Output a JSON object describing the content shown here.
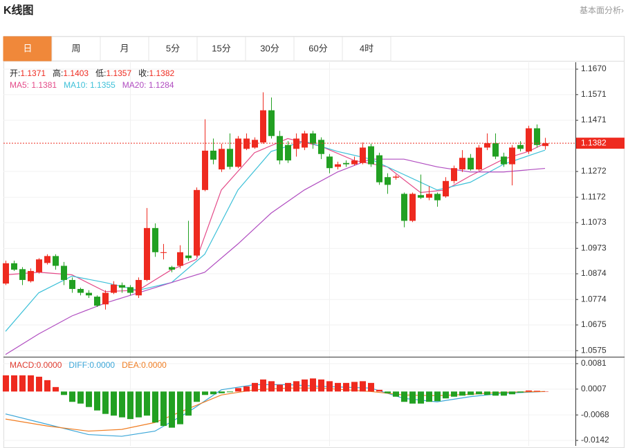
{
  "header": {
    "title": "K线图",
    "link": "基本面分析›"
  },
  "tabs": [
    "日",
    "周",
    "月",
    "5分",
    "15分",
    "30分",
    "60分",
    "4时"
  ],
  "active_tab": 0,
  "chart_data": [
    {
      "type": "candlestick",
      "open": [
        1.0836,
        1.0915,
        1.0892,
        1.0845,
        1.088,
        1.0916,
        1.0943,
        1.0905,
        1.085,
        1.0815,
        1.08,
        1.0785,
        1.0755,
        1.08,
        1.083,
        1.0822,
        1.079,
        1.085,
        1.1052,
        1.0955,
        1.09,
        1.0905,
        1.0945,
        1.0945,
        1.12,
        1.1353,
        1.128,
        1.136,
        1.129,
        1.136,
        1.1365,
        1.1385,
        1.151,
        1.141,
        1.1375,
        1.136,
        1.1365,
        1.142,
        1.1395,
        1.133,
        1.129,
        1.1305,
        1.13,
        1.1305,
        1.137,
        1.1335,
        1.125,
        1.1248,
        1.1185,
        1.108,
        1.118,
        1.117,
        1.1185,
        1.1175,
        1.1235,
        1.128,
        1.1325,
        1.128,
        1.1365,
        1.1382,
        1.133,
        1.13,
        1.1375,
        1.135,
        1.144,
        1.1371
      ],
      "high": [
        1.0925,
        1.0925,
        1.09,
        1.0895,
        1.0935,
        1.095,
        1.095,
        1.092,
        1.086,
        1.082,
        1.081,
        1.079,
        1.081,
        1.0845,
        1.084,
        1.083,
        1.086,
        1.113,
        1.107,
        1.099,
        1.0905,
        1.0985,
        1.108,
        1.121,
        1.1475,
        1.14,
        1.138,
        1.142,
        1.141,
        1.142,
        1.1405,
        1.158,
        1.156,
        1.143,
        1.139,
        1.142,
        1.143,
        1.143,
        1.1405,
        1.134,
        1.131,
        1.1315,
        1.133,
        1.1385,
        1.138,
        1.1345,
        1.1265,
        1.126,
        1.119,
        1.119,
        1.126,
        1.1215,
        1.119,
        1.125,
        1.1295,
        1.1355,
        1.134,
        1.1375,
        1.142,
        1.142,
        1.1345,
        1.1375,
        1.139,
        1.145,
        1.1455,
        1.1403
      ],
      "low": [
        1.083,
        1.0885,
        1.083,
        1.084,
        1.0875,
        1.091,
        1.089,
        1.083,
        1.08,
        1.079,
        1.078,
        1.0745,
        1.0735,
        1.0795,
        1.08,
        1.079,
        1.078,
        1.0845,
        1.094,
        1.093,
        1.088,
        1.0895,
        1.0925,
        1.094,
        1.1195,
        1.13,
        1.127,
        1.128,
        1.1285,
        1.1355,
        1.136,
        1.138,
        1.14,
        1.13,
        1.1305,
        1.133,
        1.1355,
        1.136,
        1.132,
        1.1265,
        1.128,
        1.129,
        1.1295,
        1.13,
        1.129,
        1.122,
        1.1185,
        1.124,
        1.1055,
        1.1075,
        1.1165,
        1.116,
        1.1135,
        1.117,
        1.1225,
        1.127,
        1.1275,
        1.1275,
        1.1355,
        1.132,
        1.129,
        1.1218,
        1.135,
        1.134,
        1.1365,
        1.1357
      ],
      "close": [
        1.0915,
        1.089,
        1.085,
        1.0885,
        1.093,
        1.0943,
        1.0905,
        1.085,
        1.0815,
        1.08,
        1.079,
        1.075,
        1.08,
        1.0832,
        1.082,
        1.08,
        1.085,
        1.1052,
        1.0958,
        1.0958,
        1.089,
        1.0958,
        1.0935,
        1.12,
        1.1353,
        1.1318,
        1.136,
        1.129,
        1.14,
        1.14,
        1.1395,
        1.151,
        1.141,
        1.1315,
        1.1315,
        1.14,
        1.142,
        1.138,
        1.134,
        1.1285,
        1.13,
        1.13,
        1.1315,
        1.1365,
        1.13,
        1.123,
        1.122,
        1.1252,
        1.108,
        1.1185,
        1.117,
        1.1185,
        1.116,
        1.1235,
        1.1285,
        1.1325,
        1.128,
        1.1365,
        1.1382,
        1.133,
        1.13,
        1.1365,
        1.136,
        1.144,
        1.1375,
        1.1382
      ],
      "up_color": "#ee2a1f",
      "down_color": "#22a022",
      "ylim": [
        1.0554,
        1.1697
      ],
      "yticks": [
        {
          "value": 1.167,
          "label": "1.1670"
        },
        1.1571,
        1.1471,
        1.1272,
        1.1172,
        1.1073,
        1.0973,
        1.0874,
        1.0774,
        1.0675,
        1.0575
      ],
      "ohlc_legend": [
        {
          "label": "开:",
          "value": 1.1371
        },
        {
          "label": "高:",
          "value": 1.1403
        },
        {
          "label": "低:",
          "value": 1.1357
        },
        {
          "label": "收:",
          "value": 1.1382
        }
      ],
      "series": [
        {
          "name": "MA5:",
          "current": 1.1381,
          "color": "#e44a88",
          "x": [
            0,
            4,
            8,
            12,
            16,
            20,
            23,
            26,
            30,
            34,
            38,
            42,
            46,
            50,
            53,
            56,
            60,
            63,
            65
          ],
          "values": [
            1.087,
            1.088,
            1.087,
            1.0805,
            1.081,
            1.089,
            1.093,
            1.12,
            1.1345,
            1.14,
            1.137,
            1.1315,
            1.129,
            1.119,
            1.12,
            1.1255,
            1.132,
            1.135,
            1.1381
          ]
        },
        {
          "name": "MA10:",
          "current": 1.1355,
          "color": "#3cc0d8",
          "x": [
            0,
            4,
            8,
            12,
            16,
            20,
            24,
            28,
            32,
            36,
            40,
            44,
            48,
            52,
            56,
            60,
            65
          ],
          "values": [
            1.065,
            1.08,
            1.0865,
            1.084,
            1.081,
            1.084,
            1.095,
            1.12,
            1.135,
            1.139,
            1.135,
            1.132,
            1.126,
            1.12,
            1.123,
            1.13,
            1.1355
          ]
        },
        {
          "name": "MA20:",
          "current": 1.1284,
          "color": "#b04cc0",
          "x": [
            0,
            4,
            8,
            12,
            16,
            20,
            24,
            28,
            32,
            36,
            40,
            44,
            48,
            52,
            56,
            60,
            65
          ],
          "values": [
            1.056,
            1.064,
            1.071,
            1.076,
            1.08,
            1.084,
            1.088,
            1.099,
            1.111,
            1.12,
            1.127,
            1.132,
            1.132,
            1.129,
            1.127,
            1.127,
            1.1284
          ]
        }
      ]
    },
    {
      "type": "macd",
      "legend": {
        "name": "MACD:",
        "current": 0,
        "current_label": "0.0000",
        "color": "#e03a2e"
      },
      "values": [
        0.0047,
        0.0047,
        0.0047,
        0.0047,
        0.0043,
        0.0033,
        0.0013,
        -0.001,
        -0.003,
        -0.0035,
        -0.0045,
        -0.0055,
        -0.0065,
        -0.007,
        -0.0075,
        -0.008,
        -0.0075,
        -0.007,
        -0.009,
        -0.01,
        -0.0105,
        -0.0095,
        -0.007,
        -0.003,
        -0.001,
        -0.0008,
        -0.0005,
        -0.0002,
        0.001,
        0.0015,
        0.0025,
        0.0035,
        0.003,
        0.002,
        0.0025,
        0.003,
        0.0035,
        0.0038,
        0.0035,
        0.003,
        0.0025,
        0.0025,
        0.0028,
        0.003,
        0.0025,
        0.0005,
        -0.0005,
        -0.0015,
        -0.003,
        -0.0035,
        -0.0035,
        -0.003,
        -0.0028,
        -0.002,
        -0.0015,
        -0.0012,
        -0.001,
        -0.0008,
        -0.001,
        -0.0012,
        -0.0012,
        -0.0008,
        -0.0003,
        0.0003,
        0.0002,
        0
      ],
      "up_color": "#ee2a1f",
      "down_color": "#22a022",
      "ylim": [
        -0.0158,
        0.0097
      ],
      "yticks": [
        0.0081,
        0.0007,
        -0.0068,
        -0.0142
      ],
      "series": [
        {
          "name": "DIFF:",
          "current": 0,
          "current_label": "0.0000",
          "color": "#3aa6d8",
          "x": [
            0,
            5,
            10,
            14,
            18,
            22,
            26,
            30,
            34,
            38,
            44,
            48,
            52,
            56,
            60,
            65
          ],
          "values": [
            -0.0065,
            -0.0095,
            -0.0125,
            -0.013,
            -0.0115,
            -0.006,
            0.0005,
            0.002,
            0.002,
            0.0015,
            0.001,
            -0.002,
            -0.003,
            -0.0015,
            -0.0005,
            0
          ]
        },
        {
          "name": "DEA:",
          "current": 0,
          "current_label": "0.0000",
          "color": "#f07d22",
          "x": [
            0,
            5,
            10,
            14,
            18,
            22,
            26,
            30,
            34,
            38,
            44,
            48,
            52,
            56,
            60,
            65
          ],
          "values": [
            -0.008,
            -0.01,
            -0.0115,
            -0.011,
            -0.009,
            -0.005,
            -0.001,
            0.0005,
            0.001,
            0.001,
            0,
            -0.001,
            -0.0012,
            -0.0008,
            -0.0002,
            0
          ]
        }
      ]
    }
  ]
}
